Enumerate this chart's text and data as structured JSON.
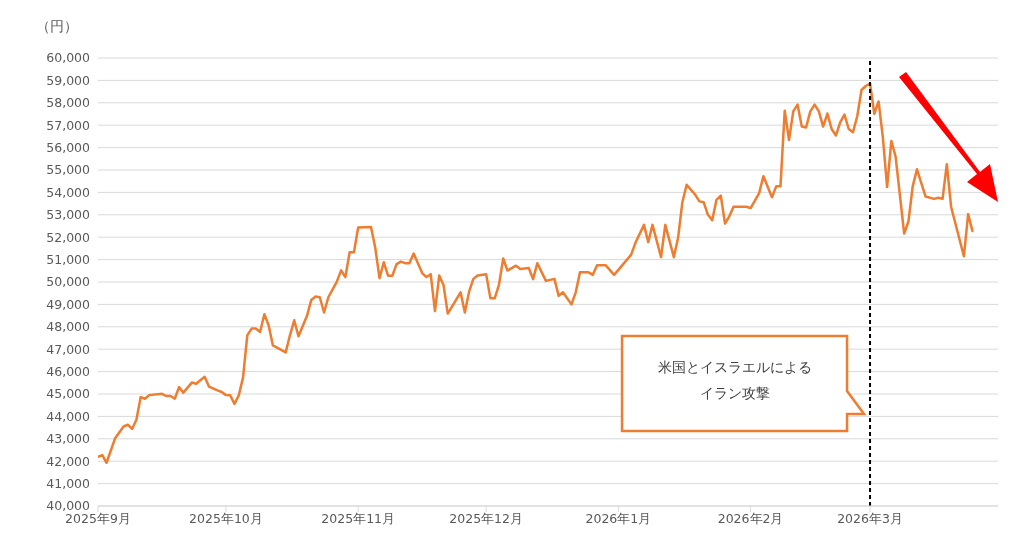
{
  "chart_data": {
    "type": "line",
    "ylabel": "（円）",
    "color": "#ed7d31",
    "marker": "none",
    "line_style": "solid",
    "grid": "y",
    "legend": false,
    "ylim": [
      40000,
      60000
    ],
    "yticks": [
      {
        "value": 40000,
        "label": "40,000"
      },
      {
        "value": 41000,
        "label": "41,000"
      },
      {
        "value": 42000,
        "label": "42,000"
      },
      {
        "value": 43000,
        "label": "43,000"
      },
      {
        "value": 44000,
        "label": "44,000"
      },
      {
        "value": 45000,
        "label": "45,000"
      },
      {
        "value": 46000,
        "label": "46,000"
      },
      {
        "value": 47000,
        "label": "47,000"
      },
      {
        "value": 48000,
        "label": "48,000"
      },
      {
        "value": 49000,
        "label": "49,000"
      },
      {
        "value": 50000,
        "label": "50,000"
      },
      {
        "value": 51000,
        "label": "51,000"
      },
      {
        "value": 52000,
        "label": "52,000"
      },
      {
        "value": 53000,
        "label": "53,000"
      },
      {
        "value": 54000,
        "label": "54,000"
      },
      {
        "value": 55000,
        "label": "55,000"
      },
      {
        "value": 56000,
        "label": "56,000"
      },
      {
        "value": 57000,
        "label": "57,000"
      },
      {
        "value": 58000,
        "label": "58,000"
      },
      {
        "value": 59000,
        "label": "59,000"
      },
      {
        "value": 60000,
        "label": "60,000"
      }
    ],
    "annotations": [
      "米国とイスラエルによるイラン攻撃"
    ],
    "xlim": [
      "2025-09-01",
      "2026-03-31"
    ],
    "xticks": [
      {
        "value": "2025-09-01",
        "label": "2025年9月"
      },
      {
        "value": "2025-10-01",
        "label": "2025年10月"
      },
      {
        "value": "2025-11-01",
        "label": "2025年11月"
      },
      {
        "value": "2025-12-01",
        "label": "2025年12月"
      },
      {
        "value": "2026-01-01",
        "label": "2026年1月"
      },
      {
        "value": "2026-02-01",
        "label": "2026年2月"
      },
      {
        "value": "2026-03-01",
        "label": "2026年3月"
      }
    ],
    "ref_lines": [
      {
        "axis": "x",
        "value": "2026-03-01",
        "color": "#000000",
        "line_style": "dashed"
      }
    ],
    "x": [
      "2025-09-01",
      "2025-09-02",
      "2025-09-03",
      "2025-09-05",
      "2025-09-07",
      "2025-09-08",
      "2025-09-09",
      "2025-09-10",
      "2025-09-11",
      "2025-09-12",
      "2025-09-13",
      "2025-09-16",
      "2025-09-17",
      "2025-09-18",
      "2025-09-19",
      "2025-09-20",
      "2025-09-21",
      "2025-09-23",
      "2025-09-24",
      "2025-09-26",
      "2025-09-27",
      "2025-09-29",
      "2025-09-30",
      "2025-10-01",
      "2025-10-02",
      "2025-10-03",
      "2025-10-04",
      "2025-10-05",
      "2025-10-06",
      "2025-10-07",
      "2025-10-08",
      "2025-10-09",
      "2025-10-10",
      "2025-10-11",
      "2025-10-12",
      "2025-10-15",
      "2025-10-16",
      "2025-10-17",
      "2025-10-18",
      "2025-10-20",
      "2025-10-21",
      "2025-10-22",
      "2025-10-23",
      "2025-10-24",
      "2025-10-25",
      "2025-10-27",
      "2025-10-28",
      "2025-10-29",
      "2025-10-30",
      "2025-10-31",
      "2025-11-01",
      "2025-11-04",
      "2025-11-05",
      "2025-11-06",
      "2025-11-07",
      "2025-11-08",
      "2025-11-09",
      "2025-11-10",
      "2025-11-11",
      "2025-11-12",
      "2025-11-13",
      "2025-11-14",
      "2025-11-16",
      "2025-11-17",
      "2025-11-18",
      "2025-11-19",
      "2025-11-20",
      "2025-11-21",
      "2025-11-22",
      "2025-11-25",
      "2025-11-26",
      "2025-11-27",
      "2025-11-28",
      "2025-11-29",
      "2025-12-01",
      "2025-12-02",
      "2025-12-03",
      "2025-12-04",
      "2025-12-05",
      "2025-12-06",
      "2025-12-08",
      "2025-12-09",
      "2025-12-11",
      "2025-12-12",
      "2025-12-13",
      "2025-12-15",
      "2025-12-17",
      "2025-12-18",
      "2025-12-19",
      "2025-12-21",
      "2025-12-22",
      "2025-12-23",
      "2025-12-25",
      "2025-12-26",
      "2025-12-27",
      "2025-12-29",
      "2025-12-31",
      "2026-01-04",
      "2026-01-05",
      "2026-01-07",
      "2026-01-08",
      "2026-01-09",
      "2026-01-11",
      "2026-01-12",
      "2026-01-14",
      "2026-01-15",
      "2026-01-16",
      "2026-01-17",
      "2026-01-19",
      "2026-01-20",
      "2026-01-21",
      "2026-01-22",
      "2026-01-23",
      "2026-01-24",
      "2026-01-25",
      "2026-01-26",
      "2026-01-27",
      "2026-01-28",
      "2026-01-31",
      "2026-02-01",
      "2026-02-03",
      "2026-02-04",
      "2026-02-06",
      "2026-02-07",
      "2026-02-08",
      "2026-02-09",
      "2026-02-10",
      "2026-02-11",
      "2026-02-12",
      "2026-02-13",
      "2026-02-14",
      "2026-02-15",
      "2026-02-16",
      "2026-02-17",
      "2026-02-18",
      "2026-02-19",
      "2026-02-20",
      "2026-02-21",
      "2026-02-22",
      "2026-02-23",
      "2026-02-24",
      "2026-02-25",
      "2026-02-26",
      "2026-02-27",
      "2026-02-28",
      "2026-03-01",
      "2026-03-02",
      "2026-03-03",
      "2026-03-04",
      "2026-03-05",
      "2026-03-06",
      "2026-03-07",
      "2026-03-09",
      "2026-03-10",
      "2026-03-11",
      "2026-03-12",
      "2026-03-14",
      "2026-03-16",
      "2026-03-17",
      "2026-03-18",
      "2026-03-19",
      "2026-03-20",
      "2026-03-23",
      "2026-03-24",
      "2026-03-25"
    ],
    "values": [
      42200,
      42270,
      41930,
      43020,
      43550,
      43630,
      43440,
      43850,
      44860,
      44790,
      44950,
      45010,
      44910,
      44910,
      44790,
      45310,
      45060,
      45510,
      45460,
      45770,
      45330,
      45160,
      45090,
      44950,
      44940,
      44560,
      44940,
      45730,
      47620,
      47920,
      47920,
      47770,
      48560,
      48070,
      47170,
      46860,
      47620,
      48290,
      47580,
      48490,
      49200,
      49350,
      49320,
      48640,
      49320,
      50020,
      50520,
      50220,
      51330,
      51330,
      52430,
      52460,
      51530,
      50170,
      50880,
      50280,
      50280,
      50800,
      50910,
      50840,
      50840,
      51270,
      50400,
      50220,
      50350,
      48700,
      50290,
      49870,
      48590,
      49540,
      48640,
      49570,
      50140,
      50290,
      50350,
      49270,
      49270,
      49870,
      51050,
      50510,
      50730,
      50580,
      50620,
      50130,
      50840,
      50050,
      50140,
      49380,
      49540,
      49000,
      49540,
      50440,
      50430,
      50320,
      50750,
      50750,
      50320,
      51220,
      51750,
      52550,
      51780,
      52550,
      51110,
      52550,
      51110,
      51980,
      53560,
      54340,
      53900,
      53600,
      53560,
      53000,
      52760,
      53670,
      53860,
      52610,
      52930,
      53360,
      53360,
      53300,
      53970,
      54720,
      53780,
      54270,
      54270,
      57650,
      56340,
      57620,
      57920,
      56940,
      56900,
      57620,
      57920,
      57620,
      56940,
      57520,
      56830,
      56540,
      57130,
      57470,
      56830,
      56690,
      57400,
      58570,
      58750,
      58860,
      57510,
      58060,
      56470,
      54240,
      56300,
      55590,
      52160,
      52700,
      54270,
      55030,
      53820,
      53710,
      53760,
      53710,
      55260,
      53360,
      51150,
      53030,
      52280
    ]
  }
}
